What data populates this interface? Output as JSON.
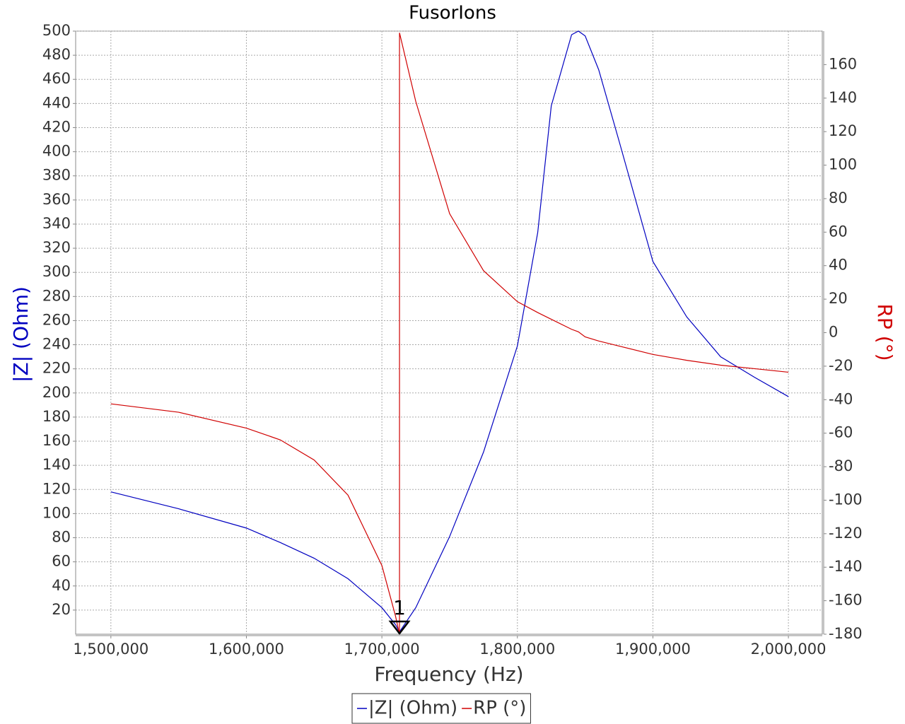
{
  "chart_data": {
    "type": "line",
    "title": "FusorIons",
    "x_label": "Frequency (Hz)",
    "y_label": "|Z| (Ohm)",
    "y2_label": "RP (°)",
    "x": [
      1500000,
      1550000,
      1600000,
      1625000,
      1650000,
      1675000,
      1700000,
      1710000,
      1713000,
      1713000,
      1725000,
      1750000,
      1775000,
      1800000,
      1815000,
      1825000,
      1840000,
      1845000,
      1850000,
      1860000,
      1875000,
      1900000,
      1925000,
      1950000,
      1975000,
      2000000
    ],
    "series": [
      {
        "name": "|Z| (Ohm)",
        "color": "#0000c0",
        "values": [
          118,
          104,
          88,
          76,
          63,
          46,
          22,
          8,
          2,
          2,
          22,
          81,
          151,
          239,
          333,
          438,
          497,
          500,
          496,
          468,
          409,
          309,
          263,
          230,
          213,
          197
        ]
      },
      {
        "name": "RP (°)",
        "color": "#d00000",
        "axis": "y2",
        "values": [
          -42.5,
          -47.5,
          -57,
          -64,
          -76,
          -97,
          -139,
          -169,
          -180,
          179,
          138,
          71,
          37,
          18.5,
          12,
          8,
          2,
          0.5,
          -2.5,
          -5,
          -8,
          -13,
          -16.5,
          -19.4,
          -21.5,
          -23.6
        ]
      }
    ],
    "xlim": [
      1474000,
      2025000
    ],
    "xticks": [
      {
        "value": 1500000,
        "label": "1,500,000"
      },
      {
        "value": 1600000,
        "label": "1,600,000"
      },
      {
        "value": 1700000,
        "label": "1,700,000"
      },
      {
        "value": 1800000,
        "label": "1,800,000"
      },
      {
        "value": 1900000,
        "label": "1,900,000"
      },
      {
        "value": 2000000,
        "label": "2,000,000"
      }
    ],
    "ylim": [
      0,
      500
    ],
    "yticks": [
      20,
      40,
      60,
      80,
      100,
      120,
      140,
      160,
      180,
      200,
      220,
      240,
      260,
      280,
      300,
      320,
      340,
      360,
      380,
      400,
      420,
      440,
      460,
      480,
      500
    ],
    "y2lim": [
      -180,
      180
    ],
    "y2ticks": [
      -180,
      -160,
      -140,
      -120,
      -100,
      -80,
      -60,
      -40,
      -20,
      0,
      20,
      40,
      60,
      80,
      100,
      120,
      140,
      160
    ],
    "y_label_color": "#0000c0",
    "y2_label_color": "#d00000",
    "grid": true,
    "markers": [
      {
        "label": "1",
        "x": 1713000
      }
    ]
  }
}
